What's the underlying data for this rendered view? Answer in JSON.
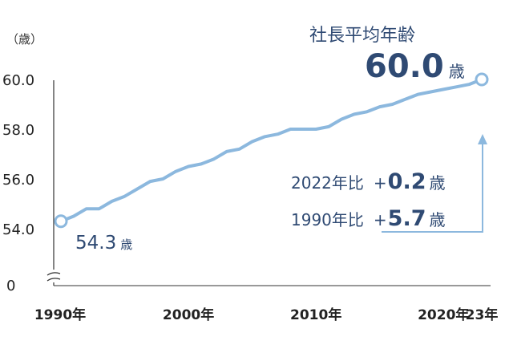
{
  "chart_data": {
    "type": "line",
    "title": "",
    "xlabel": "",
    "ylabel": "",
    "y_unit_label": "（歳）",
    "ylim": [
      53.6,
      60.1
    ],
    "xlim": [
      1990,
      2023
    ],
    "y_ticks": [
      "54.0",
      "56.0",
      "58.0",
      "60.0"
    ],
    "y_zero_label": "0",
    "x_ticks": [
      {
        "x": 1990,
        "label": "1990年"
      },
      {
        "x": 2000,
        "label": "2000年"
      },
      {
        "x": 2010,
        "label": "2010年"
      },
      {
        "x": 2020,
        "label": "2020年"
      },
      {
        "x": 2023,
        "label": "23年"
      }
    ],
    "series": [
      {
        "color": "#8cb8de",
        "x": [
          1990,
          1991,
          1992,
          1993,
          1994,
          1995,
          1996,
          1997,
          1998,
          1999,
          2000,
          2001,
          2002,
          2003,
          2004,
          2005,
          2006,
          2007,
          2008,
          2009,
          2010,
          2011,
          2012,
          2013,
          2014,
          2015,
          2016,
          2017,
          2018,
          2019,
          2020,
          2021,
          2022,
          2023
        ],
        "values": [
          54.3,
          54.5,
          54.8,
          54.8,
          55.1,
          55.3,
          55.6,
          55.9,
          56.0,
          56.3,
          56.5,
          56.6,
          56.8,
          57.1,
          57.2,
          57.5,
          57.7,
          57.8,
          58.0,
          58.0,
          58.0,
          58.1,
          58.4,
          58.6,
          58.7,
          58.9,
          59.0,
          59.2,
          59.4,
          59.5,
          59.6,
          59.7,
          59.8,
          60.0
        ]
      }
    ],
    "start_value": "54.3",
    "start_unit": "歳",
    "end_label": "社長平均年齢",
    "end_value": "60.0",
    "end_unit": "歳",
    "compare": [
      {
        "label": "2022年比",
        "sign": "+",
        "value": "0.2",
        "unit": "歳"
      },
      {
        "label": "1990年比",
        "sign": "+",
        "value": "5.7",
        "unit": "歳"
      }
    ],
    "colors": {
      "line": "#8cb8de",
      "text_navy": "#2f4a73",
      "arrow": "#8cb8de"
    }
  }
}
